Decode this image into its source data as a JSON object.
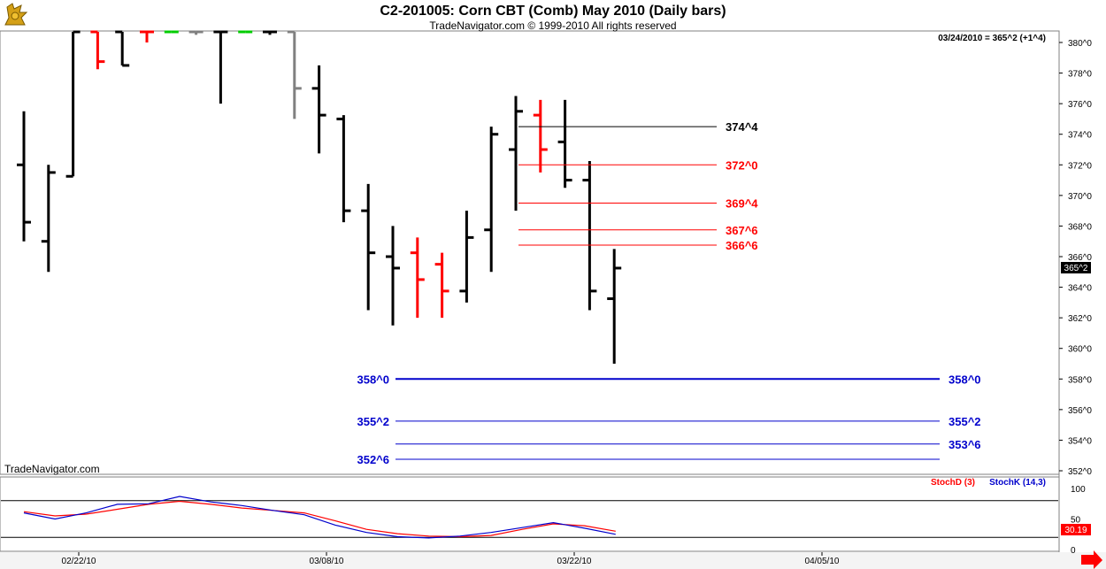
{
  "header": {
    "title": "C2-201005:  Corn CBT (Comb) May 2010  (Daily bars)",
    "copyright": "TradeNavigator.com © 1999-2010 All rights reserved",
    "last_readout": "03/24/2010 = 365^2 (+1^4)",
    "watermark": "TradeNavigator.com"
  },
  "toolbar": {
    "logo": "trade-navigator-logo-icon",
    "next_arrow": "right-arrow-icon"
  },
  "colors": {
    "up": "#000000",
    "down": "#ff0000",
    "neutral": "#808080",
    "inside": "#00cc00",
    "blue": "#0000cc",
    "red": "#ff0000",
    "price_tag_bg": "#000000",
    "stoch_tag_bg": "#ff0000"
  },
  "chart_data": [
    {
      "type": "ohlc",
      "title": "C2-201005:  Corn CBT (Comb) May 2010  (Daily bars)",
      "y_unit": "cents/bu (eighths notation)",
      "ylim": [
        351.5,
        381.25
      ],
      "y_ticks": [
        "352^0",
        "354^0",
        "356^0",
        "358^0",
        "360^0",
        "362^0",
        "364^0",
        "366^0",
        "368^0",
        "370^0",
        "372^0",
        "374^0",
        "376^0",
        "378^0",
        "380^0"
      ],
      "x_ticks": [
        "02/22/10",
        "03/08/10",
        "03/22/10",
        "04/05/10"
      ],
      "bars": [
        {
          "h": 375.5,
          "l": 367.0,
          "o": 372.0,
          "c": 368.25,
          "col": "up"
        },
        {
          "h": 372.0,
          "l": 365.0,
          "o": 367.0,
          "c": 371.5,
          "col": "up"
        },
        {
          "h": 381.0,
          "l": 371.25,
          "o": 371.25,
          "c": 381.0,
          "col": "up"
        },
        {
          "h": 381.0,
          "l": 378.25,
          "o": 381.0,
          "c": 378.75,
          "col": "down"
        },
        {
          "h": 381.0,
          "l": 378.5,
          "o": 381.0,
          "c": 378.5,
          "col": "up"
        },
        {
          "h": 381.0,
          "l": 380.0,
          "o": 381.0,
          "c": 381.0,
          "col": "down"
        },
        {
          "h": 381.0,
          "l": 381.0,
          "o": 381.0,
          "c": 381.0,
          "col": "inside"
        },
        {
          "h": 381.0,
          "l": 380.5,
          "o": 381.0,
          "c": 380.75,
          "col": "neutral"
        },
        {
          "h": 381.0,
          "l": 376.0,
          "o": 381.0,
          "c": 380.75,
          "col": "up"
        },
        {
          "h": 381.0,
          "l": 381.0,
          "o": 381.0,
          "c": 381.0,
          "col": "inside"
        },
        {
          "h": 381.0,
          "l": 380.5,
          "o": 381.0,
          "c": 380.75,
          "col": "up"
        },
        {
          "h": 381.0,
          "l": 375.0,
          "o": 381.0,
          "c": 377.0,
          "col": "neutral"
        },
        {
          "h": 378.5,
          "l": 372.75,
          "o": 377.0,
          "c": 375.25,
          "col": "up"
        },
        {
          "h": 375.25,
          "l": 368.25,
          "o": 375.0,
          "c": 369.0,
          "col": "up"
        },
        {
          "h": 370.75,
          "l": 362.5,
          "o": 369.0,
          "c": 366.25,
          "col": "up"
        },
        {
          "h": 368.0,
          "l": 361.5,
          "o": 366.0,
          "c": 365.25,
          "col": "up"
        },
        {
          "h": 367.25,
          "l": 362.0,
          "o": 366.25,
          "c": 364.5,
          "col": "down"
        },
        {
          "h": 366.25,
          "l": 362.0,
          "o": 365.5,
          "c": 363.75,
          "col": "down"
        },
        {
          "h": 369.0,
          "l": 363.0,
          "o": 363.75,
          "c": 367.25,
          "col": "up"
        },
        {
          "h": 374.5,
          "l": 365.0,
          "o": 367.75,
          "c": 374.0,
          "col": "up"
        },
        {
          "h": 376.5,
          "l": 369.0,
          "o": 373.0,
          "c": 375.5,
          "col": "up"
        },
        {
          "h": 376.25,
          "l": 371.5,
          "o": 375.25,
          "c": 373.0,
          "col": "down"
        },
        {
          "h": 376.25,
          "l": 370.5,
          "o": 373.5,
          "c": 371.0,
          "col": "up"
        },
        {
          "h": 372.25,
          "l": 362.5,
          "o": 371.0,
          "c": 363.75,
          "col": "up"
        },
        {
          "h": 366.5,
          "l": 359.0,
          "o": 363.25,
          "c": 365.25,
          "col": "up"
        }
      ],
      "levels": [
        {
          "label": "374^4",
          "value": 374.5,
          "color": "black",
          "side": "right",
          "x_from_bar": 20
        },
        {
          "label": "372^0",
          "value": 372.0,
          "color": "red",
          "side": "right",
          "x_from_bar": 20
        },
        {
          "label": "369^4",
          "value": 369.5,
          "color": "red",
          "side": "right",
          "x_from_bar": 20
        },
        {
          "label": "367^6",
          "value": 367.75,
          "color": "red",
          "side": "right",
          "x_from_bar": 20
        },
        {
          "label": "366^6",
          "value": 366.75,
          "color": "red",
          "side": "right",
          "x_from_bar": 20
        },
        {
          "label": "358^0",
          "value": 358.0,
          "color": "blue",
          "side": "both",
          "thick": true
        },
        {
          "label": "355^2",
          "value": 355.25,
          "color": "blue",
          "side": "both"
        },
        {
          "label": "353^6",
          "value": 353.75,
          "color": "blue",
          "side": "right"
        },
        {
          "label": "352^6",
          "value": 352.75,
          "color": "blue",
          "side": "left"
        }
      ],
      "last_price_label": "365^2",
      "last_price": 365.25
    },
    {
      "type": "line",
      "panel": "stochastic",
      "ylim": [
        -5,
        115
      ],
      "y_ticks": [
        "100",
        "50",
        "0"
      ],
      "reference_lines": [
        80,
        20
      ],
      "series": [
        {
          "name": "StochD (3)",
          "color": "red",
          "last_label": "30.19",
          "values": [
            62,
            55,
            58,
            66,
            74,
            79,
            74,
            68,
            64,
            60,
            47,
            33,
            26,
            22,
            21,
            23,
            33,
            42,
            39,
            30
          ]
        },
        {
          "name": "StochK (14,3)",
          "color": "blue",
          "last_label": "",
          "values": [
            60,
            50,
            60,
            74,
            75,
            87,
            78,
            72,
            64,
            57,
            40,
            28,
            21,
            19,
            22,
            28,
            36,
            44,
            35,
            25
          ]
        }
      ]
    }
  ]
}
